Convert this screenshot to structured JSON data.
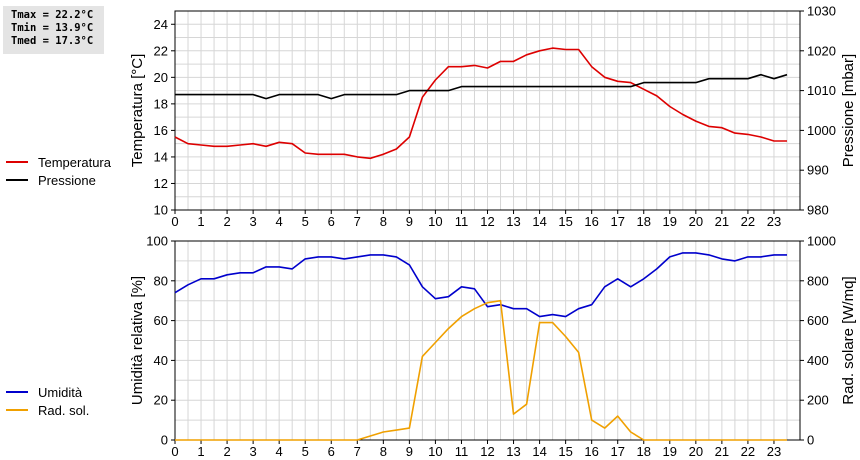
{
  "stats": {
    "tmax": "Tmax = 22.2°C",
    "tmin": "Tmin = 13.9°C",
    "tmed": "Tmed = 17.3°C"
  },
  "legend_top": [
    {
      "label": "Temperatura",
      "color": "#dd0000"
    },
    {
      "label": "Pressione",
      "color": "#000000"
    }
  ],
  "legend_bottom": [
    {
      "label": "Umidità",
      "color": "#0000cc"
    },
    {
      "label": "Rad. sol.",
      "color": "#f0a000"
    }
  ],
  "chart_data": [
    {
      "type": "line",
      "title": "",
      "xlabel": "",
      "ylabel": "Temperatura [°C]",
      "y2label": "Pressione [mbar]",
      "xlim": [
        0,
        24
      ],
      "ylim": [
        10,
        25
      ],
      "y2lim": [
        980,
        1030
      ],
      "x_ticks": [
        0,
        1,
        2,
        3,
        4,
        5,
        6,
        7,
        8,
        9,
        10,
        11,
        12,
        13,
        14,
        15,
        16,
        17,
        18,
        19,
        20,
        21,
        22,
        23
      ],
      "y_ticks": [
        10,
        12,
        14,
        16,
        18,
        20,
        22,
        24
      ],
      "y2_ticks": [
        980,
        990,
        1000,
        1010,
        1020,
        1030
      ],
      "grid": true,
      "series": [
        {
          "name": "Temperatura",
          "axis": "left",
          "color": "#dd0000",
          "x": [
            0,
            0.5,
            1,
            1.5,
            2,
            2.5,
            3,
            3.5,
            4,
            4.5,
            5,
            5.5,
            6,
            6.5,
            7,
            7.5,
            8,
            8.5,
            9,
            9.5,
            10,
            10.5,
            11,
            11.5,
            12,
            12.5,
            13,
            13.5,
            14,
            14.5,
            15,
            15.5,
            16,
            16.5,
            17,
            17.5,
            18,
            18.5,
            19,
            19.5,
            20,
            20.5,
            21,
            21.5,
            22,
            22.5,
            23,
            23.5
          ],
          "values": [
            15.5,
            15.0,
            14.9,
            14.8,
            14.8,
            14.9,
            15.0,
            14.8,
            15.1,
            15.0,
            14.3,
            14.2,
            14.2,
            14.2,
            14.0,
            13.9,
            14.2,
            14.6,
            15.5,
            18.5,
            19.8,
            20.8,
            20.8,
            20.9,
            20.7,
            21.2,
            21.2,
            21.7,
            22.0,
            22.2,
            22.1,
            22.1,
            20.8,
            20.0,
            19.7,
            19.6,
            19.1,
            18.6,
            17.8,
            17.2,
            16.7,
            16.3,
            16.2,
            15.8,
            15.7,
            15.5,
            15.2,
            15.2
          ]
        },
        {
          "name": "Pressione",
          "axis": "right",
          "color": "#000000",
          "x": [
            0,
            0.5,
            1,
            1.5,
            2,
            2.5,
            3,
            3.5,
            4,
            4.5,
            5,
            5.5,
            6,
            6.5,
            7,
            7.5,
            8,
            8.5,
            9,
            9.5,
            10,
            10.5,
            11,
            11.5,
            12,
            12.5,
            13,
            13.5,
            14,
            14.5,
            15,
            15.5,
            16,
            16.5,
            17,
            17.5,
            18,
            18.5,
            19,
            19.5,
            20,
            20.5,
            21,
            21.5,
            22,
            22.5,
            23,
            23.5
          ],
          "values": [
            1009,
            1009,
            1009,
            1009,
            1009,
            1009,
            1009,
            1008,
            1009,
            1009,
            1009,
            1009,
            1008,
            1009,
            1009,
            1009,
            1009,
            1009,
            1010,
            1010,
            1010,
            1010,
            1011,
            1011,
            1011,
            1011,
            1011,
            1011,
            1011,
            1011,
            1011,
            1011,
            1011,
            1011,
            1011,
            1011,
            1012,
            1012,
            1012,
            1012,
            1012,
            1013,
            1013,
            1013,
            1013,
            1014,
            1013,
            1014
          ]
        }
      ]
    },
    {
      "type": "line",
      "title": "",
      "xlabel": "",
      "ylabel": "Umidità relativa [%]",
      "y2label": "Rad. solare [W/mq]",
      "xlim": [
        0,
        24
      ],
      "ylim": [
        0,
        100
      ],
      "y2lim": [
        0,
        1000
      ],
      "x_ticks": [
        0,
        1,
        2,
        3,
        4,
        5,
        6,
        7,
        8,
        9,
        10,
        11,
        12,
        13,
        14,
        15,
        16,
        17,
        18,
        19,
        20,
        21,
        22,
        23
      ],
      "y_ticks": [
        0,
        20,
        40,
        60,
        80,
        100
      ],
      "y2_ticks": [
        0,
        200,
        400,
        600,
        800,
        1000
      ],
      "grid": true,
      "series": [
        {
          "name": "Umidità",
          "axis": "left",
          "color": "#0000cc",
          "x": [
            0,
            0.5,
            1,
            1.5,
            2,
            2.5,
            3,
            3.5,
            4,
            4.5,
            5,
            5.5,
            6,
            6.5,
            7,
            7.5,
            8,
            8.5,
            9,
            9.5,
            10,
            10.5,
            11,
            11.5,
            12,
            12.5,
            13,
            13.5,
            14,
            14.5,
            15,
            15.5,
            16,
            16.5,
            17,
            17.5,
            18,
            18.5,
            19,
            19.5,
            20,
            20.5,
            21,
            21.5,
            22,
            22.5,
            23,
            23.5
          ],
          "values": [
            74,
            78,
            81,
            81,
            83,
            84,
            84,
            87,
            87,
            86,
            91,
            92,
            92,
            91,
            92,
            93,
            93,
            92,
            88,
            77,
            71,
            72,
            77,
            76,
            67,
            68,
            66,
            66,
            62,
            63,
            62,
            66,
            68,
            77,
            81,
            77,
            81,
            86,
            92,
            94,
            94,
            93,
            91,
            90,
            92,
            92,
            93,
            93
          ]
        },
        {
          "name": "Rad. sol.",
          "axis": "right",
          "color": "#f0a000",
          "x": [
            0,
            0.5,
            1,
            1.5,
            2,
            2.5,
            3,
            3.5,
            4,
            4.5,
            5,
            5.5,
            6,
            6.5,
            7,
            7.5,
            8,
            8.5,
            9,
            9.5,
            10,
            10.5,
            11,
            11.5,
            12,
            12.5,
            13,
            13.5,
            14,
            14.5,
            15,
            15.5,
            16,
            16.5,
            17,
            17.5,
            18,
            18.5,
            19,
            19.5,
            20,
            20.5,
            21,
            21.5,
            22,
            22.5,
            23,
            23.5
          ],
          "values": [
            0,
            0,
            0,
            0,
            0,
            0,
            0,
            0,
            0,
            0,
            0,
            0,
            0,
            0,
            0,
            20,
            40,
            50,
            60,
            420,
            490,
            560,
            620,
            660,
            690,
            700,
            130,
            180,
            590,
            590,
            520,
            440,
            100,
            60,
            120,
            40,
            0,
            0,
            0,
            0,
            0,
            0,
            0,
            0,
            0,
            0,
            0,
            0
          ]
        }
      ]
    }
  ]
}
